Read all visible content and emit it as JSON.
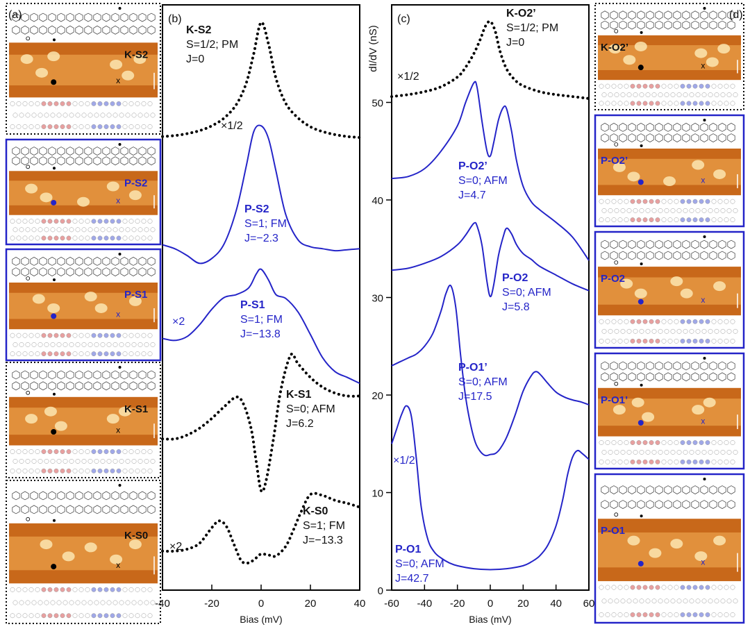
{
  "colors": {
    "K": "#000000",
    "P": "#2424c8",
    "stm_bg": "#c8681a",
    "stm_spot": "#fbe6b0"
  },
  "panels": {
    "a": {
      "tag": "(a)",
      "cards": [
        {
          "label": "K-S2",
          "kind": "K"
        },
        {
          "label": "P-S2",
          "kind": "P"
        },
        {
          "label": "P-S1",
          "kind": "P"
        },
        {
          "label": "K-S1",
          "kind": "K"
        },
        {
          "label": "K-S0",
          "kind": "K"
        }
      ]
    },
    "d": {
      "tag": "(d)",
      "cards": [
        {
          "label": "K-O2’",
          "kind": "K"
        },
        {
          "label": "P-O2’",
          "kind": "P"
        },
        {
          "label": "P-O2",
          "kind": "P"
        },
        {
          "label": "P-O1’",
          "kind": "P"
        },
        {
          "label": "P-O1",
          "kind": "P"
        }
      ]
    }
  },
  "chart_data": [
    {
      "panel": "(b)",
      "type": "line",
      "xlabel": "Bias (mV)",
      "xlim": [
        -40,
        40
      ],
      "xticks": [
        "-40",
        "-20",
        "0",
        "20",
        "40"
      ],
      "ylim": [
        0,
        60
      ],
      "series": [
        {
          "name": "K-S2",
          "style": "dotted",
          "kind": "K",
          "labels": [
            "K-S2",
            "S=1/2; PM",
            "J=0"
          ],
          "multiplier": "×1/2",
          "x": [
            -40,
            -35,
            -30,
            -25,
            -20,
            -15,
            -10,
            -6,
            -3,
            0,
            3,
            6,
            10,
            15,
            20,
            25,
            30,
            35,
            40
          ],
          "y": [
            46.5,
            46.6,
            46.8,
            47.1,
            47.6,
            48.4,
            49.8,
            52.0,
            55.0,
            58.2,
            56.0,
            52.5,
            49.9,
            48.4,
            47.5,
            47.0,
            46.7,
            46.5,
            46.4
          ]
        },
        {
          "name": "P-S2",
          "style": "solid",
          "kind": "P",
          "labels": [
            "P-S2",
            "S=1; FM",
            "J=−2.3"
          ],
          "multiplier": "",
          "x": [
            -40,
            -35,
            -30,
            -25,
            -20,
            -15,
            -10,
            -6,
            -3,
            0,
            3,
            6,
            10,
            15,
            20,
            25,
            30,
            35,
            40
          ],
          "y": [
            35.4,
            35.0,
            34.3,
            33.5,
            34.0,
            35.5,
            39.0,
            43.5,
            47.0,
            47.6,
            46.3,
            43.0,
            38.5,
            35.9,
            35.2,
            35.0,
            34.8,
            34.9,
            35.0
          ]
        },
        {
          "name": "P-S1",
          "style": "solid",
          "kind": "P",
          "labels": [
            "P-S1",
            "S=1; FM",
            "J=−13.8"
          ],
          "multiplier": "×2",
          "x": [
            -40,
            -35,
            -30,
            -25,
            -20,
            -15,
            -10,
            -5,
            -2,
            0,
            3,
            6,
            10,
            15,
            20,
            25,
            30,
            35,
            40
          ],
          "y": [
            25.8,
            25.6,
            26.0,
            27.2,
            28.8,
            30.0,
            30.3,
            31.0,
            32.4,
            32.9,
            31.8,
            30.3,
            29.9,
            28.5,
            26.2,
            23.8,
            22.4,
            21.8,
            21.2
          ]
        },
        {
          "name": "K-S1",
          "style": "dotted",
          "kind": "K",
          "labels": [
            "K-S1",
            "S=0; AFM",
            "J=6.2"
          ],
          "multiplier": "",
          "x": [
            -40,
            -35,
            -30,
            -25,
            -20,
            -15,
            -10,
            -7,
            -4,
            -2,
            0,
            2,
            5,
            8,
            12,
            15,
            20,
            25,
            30,
            35,
            40
          ],
          "y": [
            15.5,
            15.5,
            15.9,
            16.6,
            17.6,
            18.8,
            19.8,
            19.0,
            16.5,
            13.2,
            10.2,
            11.2,
            15.5,
            20.5,
            24.1,
            23.2,
            21.8,
            20.8,
            20.2,
            19.9,
            19.9
          ]
        },
        {
          "name": "K-S0",
          "style": "dotted",
          "kind": "K",
          "labels": [
            "K-S0",
            "S=1; FM",
            "J=−13.3"
          ],
          "multiplier": "×2",
          "x": [
            -40,
            -35,
            -30,
            -25,
            -20,
            -17,
            -14,
            -11,
            -8,
            -5,
            -2,
            0,
            3,
            6,
            10,
            13,
            16,
            20,
            25,
            30,
            35,
            40
          ],
          "y": [
            4.0,
            4.0,
            4.2,
            4.8,
            6.4,
            7.1,
            6.5,
            4.7,
            3.0,
            2.8,
            3.3,
            3.7,
            3.6,
            3.5,
            4.5,
            6.1,
            7.9,
            9.8,
            9.7,
            9.2,
            8.9,
            8.5
          ]
        }
      ]
    },
    {
      "panel": "(c)",
      "type": "line",
      "xlabel": "Bias (mV)",
      "ylabel": "dI/dV (nS)",
      "xlim": [
        -60,
        60
      ],
      "xticks": [
        "-60",
        "-40",
        "-20",
        "0",
        "20",
        "40",
        "60"
      ],
      "ylim": [
        0,
        60
      ],
      "yticks": [
        "0",
        "10",
        "20",
        "30",
        "40",
        "50"
      ],
      "series": [
        {
          "name": "K-O2’",
          "style": "dotted",
          "kind": "K",
          "labels": [
            "K-O2’",
            "S=1/2; PM",
            "J=0"
          ],
          "multiplier": "×1/2",
          "x": [
            -60,
            -50,
            -40,
            -30,
            -20,
            -15,
            -10,
            -6,
            -3,
            0,
            3,
            6,
            10,
            15,
            20,
            30,
            40,
            50,
            60
          ],
          "y": [
            50.6,
            50.8,
            51.1,
            51.6,
            52.6,
            53.6,
            55.0,
            56.5,
            57.8,
            58.3,
            57.3,
            55.2,
            53.4,
            52.3,
            51.7,
            51.1,
            50.8,
            50.6,
            50.4
          ]
        },
        {
          "name": "P-O2’",
          "style": "solid",
          "kind": "P",
          "labels": [
            "P-O2’",
            "S=0; AFM",
            "J=4.7"
          ],
          "multiplier": "",
          "x": [
            -60,
            -50,
            -40,
            -30,
            -20,
            -15,
            -10,
            -8,
            -5,
            -2,
            0,
            2,
            5,
            8,
            10,
            13,
            16,
            20,
            25,
            30,
            40,
            50,
            60
          ],
          "y": [
            42.2,
            42.4,
            43.2,
            45.0,
            47.6,
            50.0,
            52.0,
            51.5,
            48.0,
            45.0,
            44.5,
            45.8,
            48.2,
            49.5,
            49.3,
            47.0,
            44.0,
            41.4,
            39.8,
            39.0,
            37.7,
            36.2,
            33.8
          ]
        },
        {
          "name": "P-O2",
          "style": "solid",
          "kind": "P",
          "labels": [
            "P-O2",
            "S=0; AFM",
            "J=5.8"
          ],
          "multiplier": "",
          "x": [
            -60,
            -50,
            -40,
            -30,
            -20,
            -15,
            -10,
            -8,
            -5,
            -2,
            0,
            2,
            5,
            8,
            10,
            13,
            16,
            20,
            25,
            30,
            40,
            50,
            60
          ],
          "y": [
            32.8,
            33.0,
            33.5,
            34.2,
            35.4,
            36.4,
            37.6,
            37.3,
            35.3,
            31.6,
            30.1,
            31.2,
            34.3,
            36.3,
            37.1,
            36.5,
            35.4,
            34.5,
            33.9,
            33.2,
            32.3,
            31.4,
            30.7
          ]
        },
        {
          "name": "P-O1’",
          "style": "solid",
          "kind": "P",
          "labels": [
            "P-O1’",
            "S=0; AFM",
            "J=17.5"
          ],
          "multiplier": "",
          "x": [
            -60,
            -55,
            -50,
            -45,
            -40,
            -35,
            -30,
            -27,
            -24,
            -21,
            -18,
            -15,
            -12,
            -9,
            -6,
            -3,
            0,
            3,
            6,
            10,
            15,
            20,
            25,
            28,
            31,
            35,
            40,
            45,
            50,
            55,
            60
          ],
          "y": [
            23.0,
            23.4,
            23.8,
            24.2,
            25.0,
            26.3,
            28.6,
            30.4,
            31.2,
            29.0,
            24.0,
            19.8,
            17.0,
            15.1,
            14.2,
            13.8,
            13.9,
            14.0,
            14.5,
            15.7,
            17.9,
            20.4,
            22.0,
            22.4,
            22.0,
            21.2,
            20.3,
            19.8,
            19.5,
            19.3,
            19.0
          ]
        },
        {
          "name": "P-O1",
          "style": "solid",
          "kind": "P",
          "labels": [
            "P-O1",
            "S=0; AFM",
            "J=42.7"
          ],
          "multiplier": "×1/2",
          "x": [
            -60,
            -57,
            -54,
            -51,
            -48,
            -45,
            -42,
            -38,
            -34,
            -30,
            -25,
            -20,
            -10,
            0,
            10,
            20,
            25,
            30,
            35,
            40,
            44,
            47,
            50,
            53,
            56,
            60
          ],
          "y": [
            15.0,
            16.5,
            18.0,
            18.9,
            17.8,
            13.5,
            8.5,
            5.2,
            3.9,
            3.3,
            2.8,
            2.5,
            2.2,
            2.1,
            2.2,
            2.5,
            2.9,
            3.5,
            4.6,
            6.6,
            9.2,
            11.8,
            13.6,
            14.3,
            14.0,
            13.4
          ]
        }
      ]
    }
  ]
}
